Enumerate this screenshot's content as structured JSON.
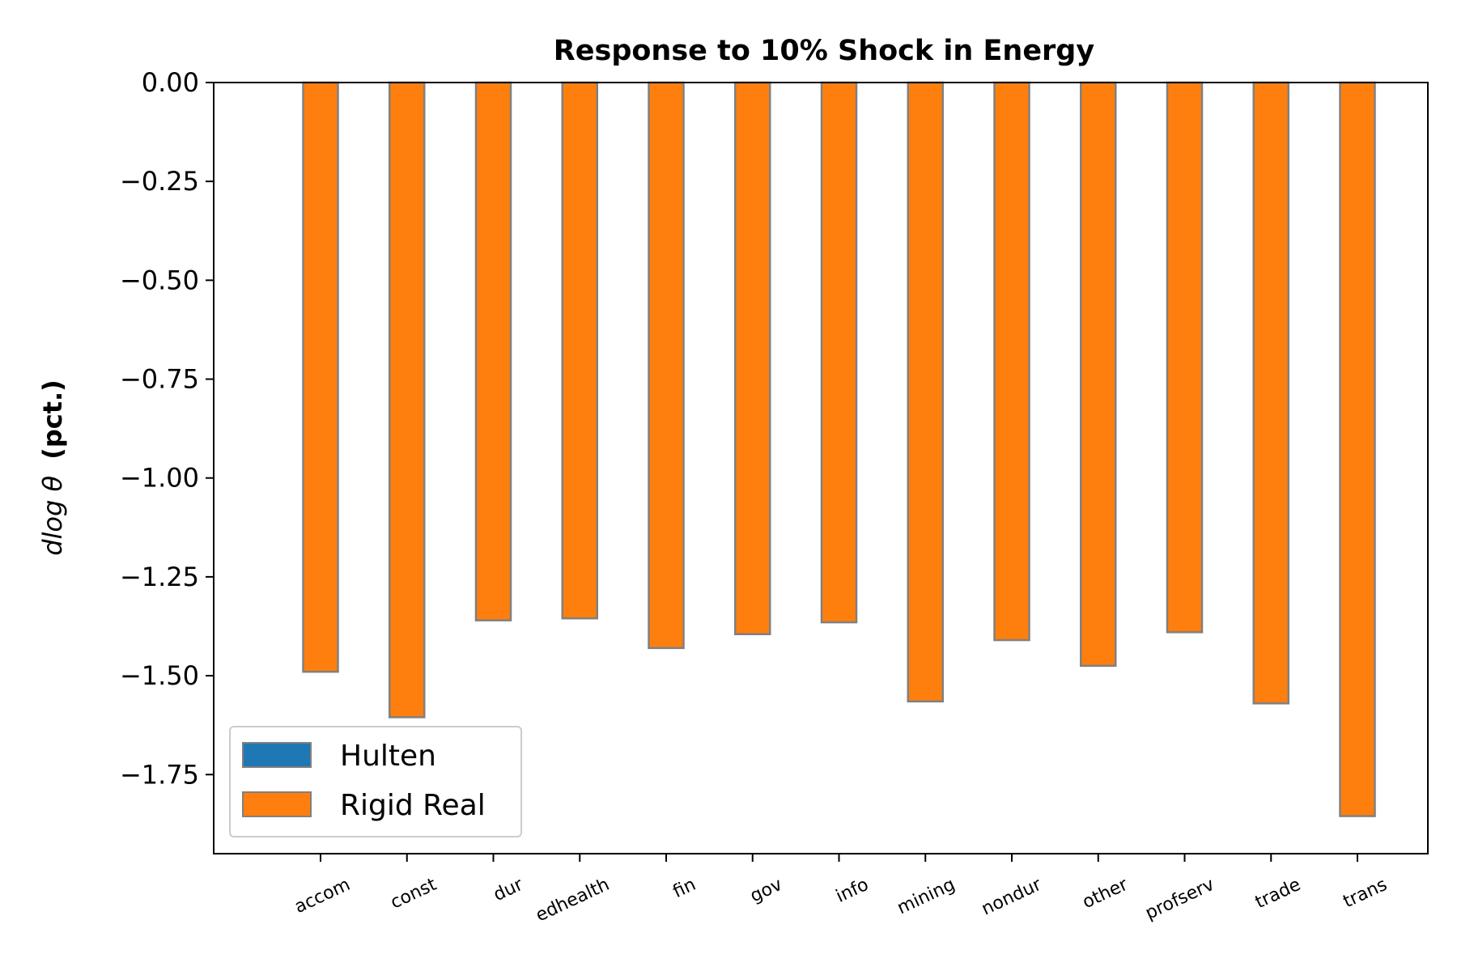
{
  "chart_data": {
    "type": "bar",
    "title": "Response to 10% Shock in Energy",
    "ylabel_math": "dlog θ",
    "ylabel_unit": "(pct.)",
    "xlabel": "",
    "categories": [
      "accom",
      "const",
      "dur",
      "edhealth",
      "fin",
      "gov",
      "info",
      "mining",
      "nondur",
      "other",
      "profserv",
      "trade",
      "trans"
    ],
    "series": [
      {
        "name": "Hulten",
        "color": "#1f77b4",
        "values": [
          0,
          0,
          0,
          0,
          0,
          0,
          0,
          0,
          0,
          0,
          0,
          0,
          0
        ]
      },
      {
        "name": "Rigid Real",
        "color": "#ff7f0e",
        "values": [
          -1.49,
          -1.605,
          -1.36,
          -1.355,
          -1.43,
          -1.395,
          -1.365,
          -1.565,
          -1.41,
          -1.475,
          -1.39,
          -1.57,
          -1.855
        ]
      }
    ],
    "ylim": [
      -1.95,
      0.0
    ],
    "yticks": [
      "0.00",
      "−0.25",
      "−0.50",
      "−0.75",
      "−1.00",
      "−1.25",
      "−1.50",
      "−1.75"
    ],
    "ytick_values": [
      0,
      -0.25,
      -0.5,
      -0.75,
      -1.0,
      -1.25,
      -1.5,
      -1.75
    ],
    "bar_edge_color": "#808080",
    "grid": false,
    "legend_position": "lower-left"
  }
}
